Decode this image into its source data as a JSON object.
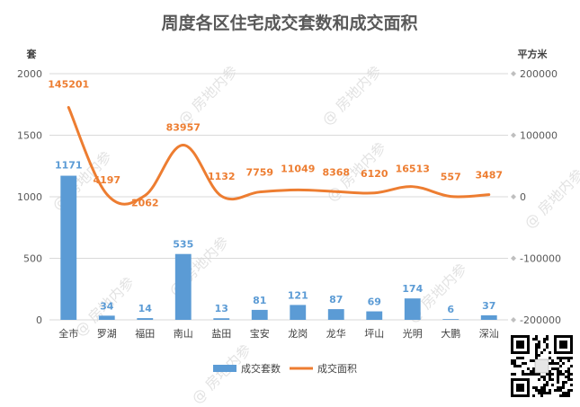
{
  "chart_data": {
    "type": "bar",
    "title": "周度各区住宅成交套数和成交面积",
    "y_left_label": "套",
    "y_right_label": "平方米",
    "categories": [
      "全市",
      "罗湖",
      "福田",
      "南山",
      "盐田",
      "宝安",
      "龙岗",
      "龙华",
      "坪山",
      "光明",
      "大鹏",
      "深汕"
    ],
    "y_left_ticks": [
      "0",
      "500",
      "1000",
      "1500",
      "2000"
    ],
    "y_left_range": [
      0,
      2000
    ],
    "y_right_ticks": [
      "-200000",
      "-100000",
      "0",
      "100000",
      "200000"
    ],
    "y_right_range": [
      -200000,
      200000
    ],
    "series": [
      {
        "name": "成交套数",
        "type": "bar",
        "axis": "left",
        "color": "#5B9BD5",
        "values": [
          1171,
          34,
          14,
          535,
          13,
          81,
          121,
          87,
          69,
          174,
          6,
          37
        ],
        "labels": [
          "1171",
          "34",
          "14",
          "535",
          "13",
          "81",
          "121",
          "87",
          "69",
          "174",
          "6",
          "37"
        ]
      },
      {
        "name": "成交面积",
        "type": "line",
        "axis": "right",
        "color": "#ED7D31",
        "values": [
          145201,
          4197,
          2062,
          83957,
          1132,
          7759,
          11049,
          8368,
          6120,
          16513,
          557,
          3487
        ],
        "labels": [
          "145201",
          "4197",
          "2062",
          "83957",
          "1132",
          "7759",
          "11049",
          "8368",
          "6120",
          "16513",
          "557",
          "3487"
        ]
      }
    ],
    "legend": {
      "placement": "bottom"
    },
    "grid": true
  },
  "watermark": "@ 房地内参"
}
